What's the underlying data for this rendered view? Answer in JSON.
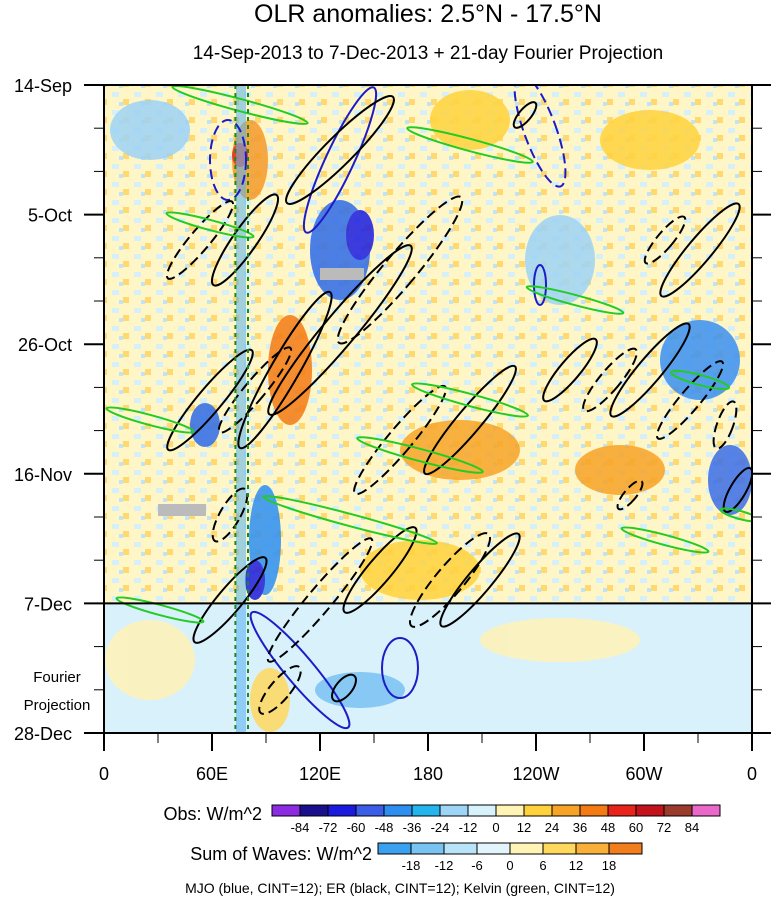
{
  "chart_data": {
    "type": "heatmap",
    "title": "OLR anomalies: 2.5°N - 17.5°N",
    "subtitle": "14-Sep-2013 to 7-Dec-2013 + 21-day Fourier Projection",
    "y_axis": {
      "labels": [
        "14-Sep",
        "5-Oct",
        "26-Oct",
        "16-Nov",
        "7-Dec",
        "28-Dec"
      ],
      "days_from_start": [
        0,
        21,
        42,
        63,
        84,
        105
      ],
      "observed_end_label": "7-Dec",
      "projection_label_lines": [
        "Fourier",
        "Projection"
      ]
    },
    "x_axis": {
      "labels": [
        "0",
        "60E",
        "120E",
        "180",
        "120W",
        "60W",
        "0"
      ],
      "longitude_east": [
        0,
        60,
        120,
        180,
        240,
        300,
        360
      ]
    },
    "reference_lines_longitude": [
      73,
      80
    ],
    "obs_colorbar": {
      "label": "Obs: W/m^2",
      "levels": [
        "-84",
        "-72",
        "-60",
        "-48",
        "-36",
        "-24",
        "-12",
        "0",
        "12",
        "24",
        "36",
        "48",
        "60",
        "72",
        "84"
      ],
      "colors": [
        "#8b2be2",
        "#1a0f8c",
        "#1b1be0",
        "#3a5ee8",
        "#2f8ff0",
        "#23b5ec",
        "#9ed4f5",
        "#d8f2fb",
        "#fff4b3",
        "#ffd23d",
        "#f7a327",
        "#f47a13",
        "#e8231a",
        "#c4121d",
        "#9b3b2e",
        "#e968c9"
      ]
    },
    "waves_colorbar": {
      "label": "Sum of Waves: W/m^2",
      "levels": [
        "-18",
        "-12",
        "-6",
        "0",
        "6",
        "12",
        "18"
      ],
      "colors": [
        "#3aa0f0",
        "#79c3f3",
        "#b9e3f8",
        "#e3f5fc",
        "#fff3b6",
        "#ffd95e",
        "#f9b03a",
        "#f27d1c"
      ]
    },
    "waves": [
      {
        "name": "MJO",
        "color": "blue",
        "cint": 12
      },
      {
        "name": "ER",
        "color": "black",
        "cint": 12
      },
      {
        "name": "Kelvin",
        "color": "green",
        "cint": 12
      }
    ],
    "caption": "MJO (blue, CINT=12); ER (black, CINT=12); Kelvin (green, CINT=12)"
  }
}
